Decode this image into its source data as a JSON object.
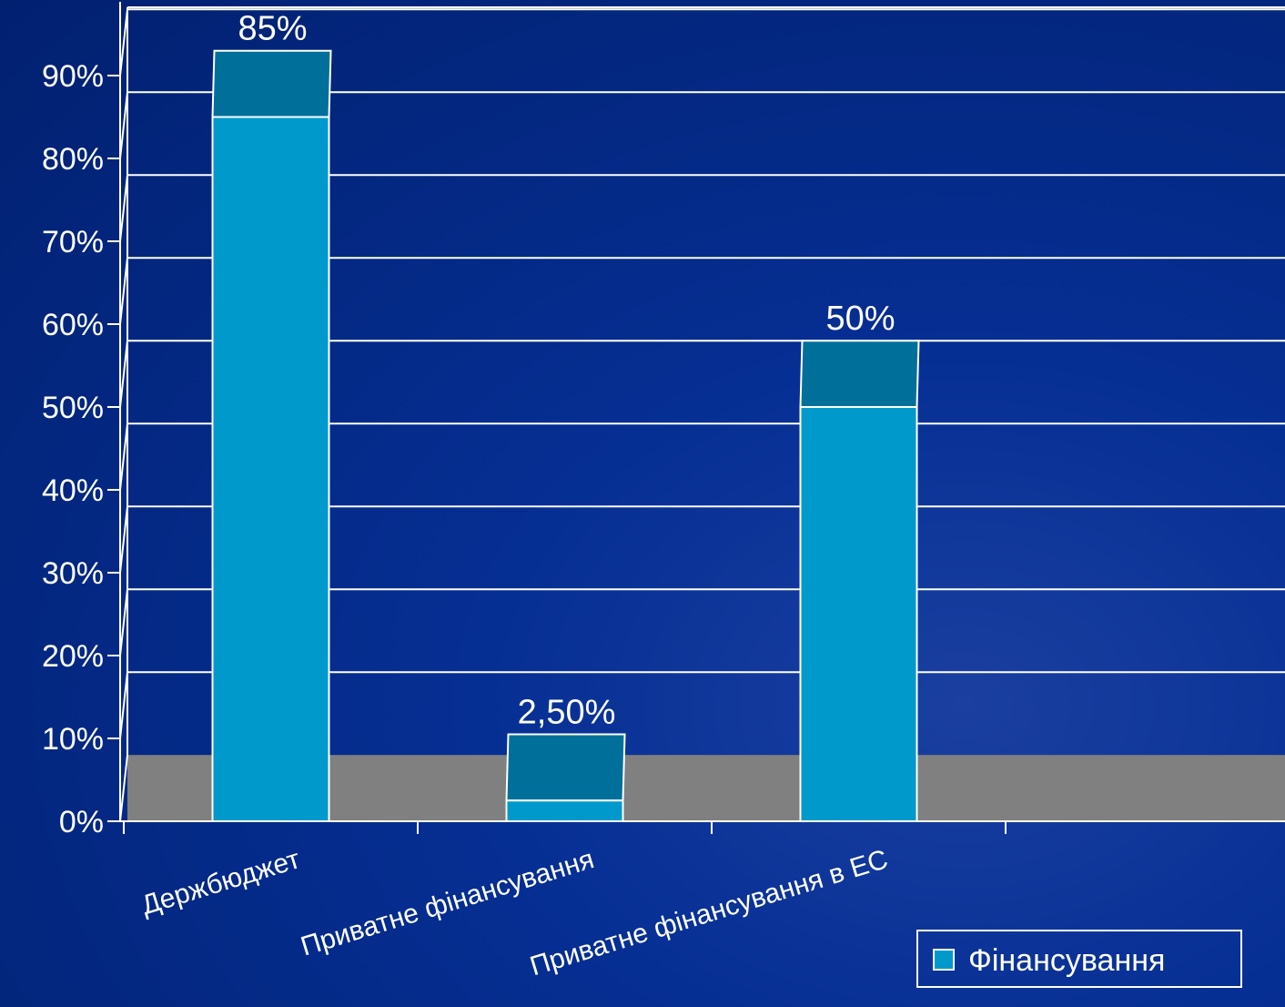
{
  "chart_data": {
    "type": "bar",
    "title": "",
    "xlabel": "",
    "ylabel": "",
    "categories": [
      "Держбюджет",
      "Приватне фінансування",
      "Приватне фінансування в ЕС"
    ],
    "series": [
      {
        "name": "Фінансування",
        "values": [
          85,
          2.5,
          50
        ]
      }
    ],
    "data_labels": [
      "85%",
      "2,50%",
      "50%"
    ],
    "y_ticks": [
      "0%",
      "10%",
      "20%",
      "30%",
      "40%",
      "50%",
      "60%",
      "70%",
      "80%",
      "90%"
    ],
    "ylim": [
      0,
      100
    ],
    "grid": true,
    "legend_position": "bottom-right",
    "colors": {
      "bar_front": "#0099cc",
      "bar_top": "#00709a",
      "floor": "#808080",
      "gridline": "#ffffff",
      "text": "#ffffff"
    }
  }
}
